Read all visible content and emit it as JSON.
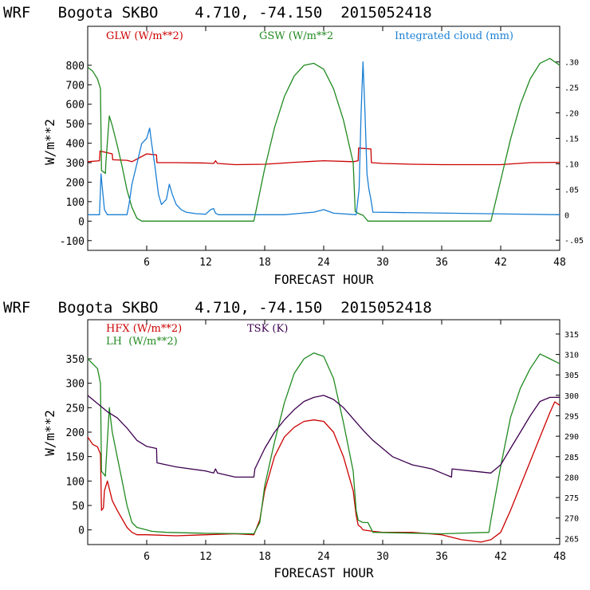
{
  "chart_data": [
    {
      "type": "line",
      "title": "WRF   Bogota SKBO    4.710, -74.150  2015052418",
      "xlabel": "FORECAST HOUR",
      "ylabel": "W/m**2",
      "xlim": [
        0,
        48
      ],
      "ylim": [
        -150,
        1000
      ],
      "y2lim": [
        -0.07,
        0.37
      ],
      "xticks": [
        6,
        12,
        18,
        24,
        30,
        36,
        42,
        48
      ],
      "xtick_labels": [
        "6",
        "12",
        "18",
        "24",
        "30",
        "36",
        "42",
        "48"
      ],
      "yticks": [
        -100,
        0,
        100,
        200,
        300,
        400,
        500,
        600,
        700,
        800
      ],
      "ytick_labels": [
        "-100",
        "0",
        "100",
        "200",
        "300",
        "400",
        "500",
        "600",
        "700",
        "800"
      ],
      "y2ticks": [
        -0.05,
        0,
        0.05,
        0.1,
        0.15,
        0.2,
        0.25,
        0.3
      ],
      "y2tick_labels": [
        "-.05",
        "0",
        ".05",
        ".10",
        ".15",
        ".20",
        ".25",
        ".30"
      ],
      "series": [
        {
          "name": "GLW (W/m**2)",
          "color": "#cc0000",
          "axis": "left",
          "x": [
            0,
            1.2,
            1.25,
            2.5,
            2.55,
            4,
            4.5,
            6,
            7,
            7.05,
            9,
            12,
            12.8,
            13,
            13.2,
            15,
            18,
            21,
            24,
            27,
            27.5,
            27.55,
            28.8,
            28.85,
            30,
            33,
            36,
            39,
            42,
            45,
            48
          ],
          "y": [
            305,
            310,
            360,
            345,
            315,
            312,
            305,
            345,
            340,
            300,
            300,
            298,
            296,
            310,
            296,
            290,
            292,
            302,
            310,
            305,
            310,
            375,
            370,
            300,
            296,
            292,
            290,
            290,
            290,
            300,
            302
          ]
        },
        {
          "name": "GSW (W/m**2",
          "color": "#208a20",
          "axis": "left",
          "x": [
            0,
            0.5,
            1,
            1.3,
            1.4,
            1.8,
            1.85,
            2.2,
            2.5,
            3,
            3.5,
            4,
            4.5,
            5,
            5.5,
            16.9,
            18,
            19,
            20,
            21,
            22,
            23,
            24,
            25,
            26,
            27,
            27.2,
            27.5,
            28,
            28.5,
            41,
            42,
            43,
            44,
            45,
            46,
            47,
            48
          ],
          "y": [
            790,
            770,
            730,
            680,
            260,
            245,
            300,
            540,
            490,
            390,
            280,
            160,
            70,
            15,
            0,
            0,
            270,
            480,
            640,
            745,
            800,
            810,
            780,
            680,
            520,
            300,
            50,
            40,
            30,
            0,
            0,
            210,
            420,
            600,
            730,
            810,
            835,
            800
          ]
        },
        {
          "name": "Integrated cloud (mm)",
          "color": "#1a7fd4",
          "axis": "right",
          "x": [
            0,
            1.2,
            1.35,
            1.5,
            1.7,
            2,
            4,
            4.2,
            4.5,
            5,
            5.5,
            6,
            6.3,
            6.5,
            6.8,
            7.2,
            7.5,
            8,
            8.3,
            8.6,
            9,
            9.5,
            10,
            11,
            12,
            12.5,
            12.8,
            13,
            13.3,
            14,
            20,
            23,
            24,
            25,
            27.3,
            27.6,
            27.8,
            28,
            28.2,
            28.4,
            28.6,
            28.8,
            29,
            48
          ],
          "y": [
            0,
            0,
            0.08,
            0.05,
            0.01,
            0,
            0,
            0.02,
            0.06,
            0.1,
            0.14,
            0.15,
            0.17,
            0.14,
            0.1,
            0.04,
            0.02,
            0.03,
            0.06,
            0.04,
            0.02,
            0.01,
            0.005,
            0.002,
            0.001,
            0.01,
            0.012,
            0.003,
            0,
            0,
            0,
            0.005,
            0.01,
            0.003,
            0,
            0.05,
            0.2,
            0.3,
            0.2,
            0.08,
            0.05,
            0.03,
            0.005,
            0
          ]
        }
      ]
    },
    {
      "type": "line",
      "title": "WRF   Bogota SKBO    4.710, -74.150  2015052418",
      "xlabel": "FORECAST HOUR",
      "ylabel": "W/m**2",
      "xlim": [
        0,
        48
      ],
      "ylim": [
        -30,
        430
      ],
      "y2lim": [
        263.5,
        318.5
      ],
      "xticks": [
        6,
        12,
        18,
        24,
        30,
        36,
        42,
        48
      ],
      "xtick_labels": [
        "6",
        "12",
        "18",
        "24",
        "30",
        "36",
        "42",
        "48"
      ],
      "yticks": [
        0,
        50,
        100,
        150,
        200,
        250,
        300,
        350
      ],
      "ytick_labels": [
        "0",
        "50",
        "100",
        "150",
        "200",
        "250",
        "300",
        "350"
      ],
      "y2ticks": [
        265,
        270,
        275,
        280,
        285,
        290,
        295,
        300,
        305,
        310,
        315
      ],
      "y2tick_labels": [
        "265",
        "270",
        "275",
        "280",
        "285",
        "290",
        "295",
        "300",
        "305",
        "310",
        "315"
      ],
      "series": [
        {
          "name": "HFX (W/m**2)",
          "color": "#cc0000",
          "axis": "left",
          "x": [
            0,
            0.5,
            1,
            1.3,
            1.4,
            1.6,
            1.7,
            2,
            2.5,
            3,
            4,
            4.5,
            5,
            6,
            9,
            12,
            15,
            16.9,
            17.5,
            18,
            19,
            20,
            21,
            22,
            23,
            24,
            25,
            26,
            27,
            27.3,
            27.5,
            27.8,
            28,
            29,
            30,
            33,
            36,
            38,
            40,
            41,
            42,
            43,
            44,
            45,
            46,
            47,
            47.5,
            48
          ],
          "y": [
            190,
            175,
            170,
            155,
            40,
            45,
            80,
            100,
            60,
            40,
            5,
            -5,
            -10,
            -10,
            -12,
            -10,
            -8,
            -10,
            20,
            80,
            150,
            190,
            210,
            222,
            225,
            222,
            200,
            150,
            80,
            30,
            10,
            5,
            0,
            -3,
            -5,
            -5,
            -10,
            -20,
            -25,
            -20,
            -5,
            40,
            90,
            140,
            190,
            240,
            262,
            255
          ]
        },
        {
          "name": "LH  (W/m**2)",
          "color": "#208a20",
          "axis": "left",
          "x": [
            0,
            0.5,
            1,
            1.3,
            1.4,
            1.8,
            1.85,
            2.2,
            2.5,
            3,
            3.5,
            4,
            4.5,
            5,
            6,
            6.5,
            8,
            12,
            16.9,
            17.5,
            18,
            19,
            20,
            21,
            22,
            23,
            24,
            25,
            26,
            27,
            27.3,
            27.5,
            28,
            28.5,
            29,
            36,
            40.8,
            41,
            42,
            43,
            44,
            45,
            46,
            47,
            48
          ],
          "y": [
            350,
            340,
            330,
            300,
            120,
            110,
            130,
            250,
            200,
            150,
            100,
            50,
            15,
            5,
            0,
            -3,
            -5,
            -7,
            -8,
            15,
            90,
            180,
            260,
            320,
            350,
            362,
            355,
            310,
            220,
            120,
            40,
            20,
            15,
            15,
            -5,
            -8,
            -5,
            20,
            130,
            230,
            290,
            330,
            360,
            350,
            340
          ]
        },
        {
          "name": "TSK (K)",
          "color": "#3d0050",
          "axis": "right",
          "x": [
            0,
            1,
            2,
            3,
            4,
            5,
            6,
            7,
            7.05,
            9,
            12,
            12.8,
            13,
            13.2,
            15,
            16.9,
            17,
            18,
            19,
            20,
            21,
            22,
            23,
            24,
            25,
            26,
            28,
            29,
            31,
            33,
            35,
            36,
            37,
            37.05,
            39,
            41,
            42,
            43,
            44,
            45,
            46,
            47,
            48
          ],
          "y": [
            300,
            298,
            296,
            294.5,
            292,
            289,
            287.5,
            287,
            283.5,
            282.5,
            281.5,
            281,
            282,
            281,
            280,
            280,
            282,
            287,
            291,
            294,
            296.5,
            298.5,
            299.5,
            300,
            299,
            297,
            291.5,
            289,
            285,
            283,
            282,
            281,
            280,
            282,
            281.5,
            281,
            283,
            287,
            291,
            295,
            298.5,
            299.5,
            299.5
          ]
        }
      ]
    }
  ]
}
